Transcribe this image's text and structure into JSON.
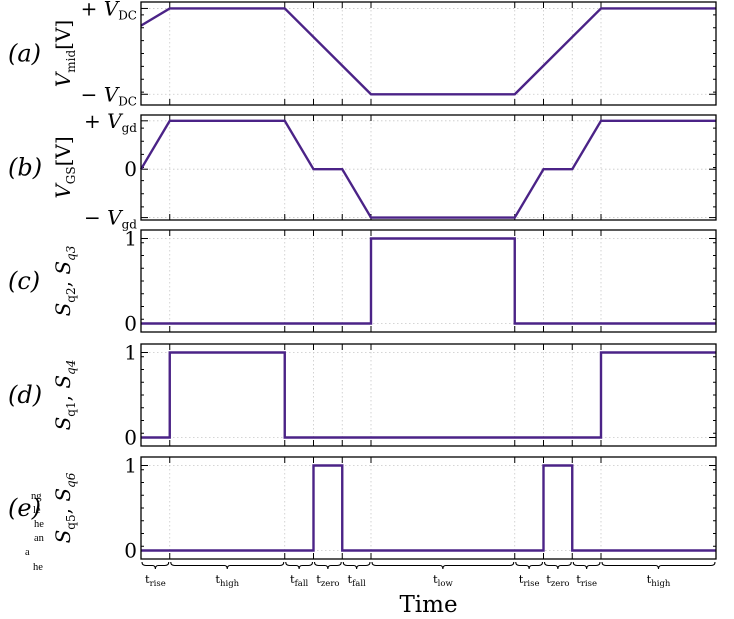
{
  "chart_data": {
    "type": "line",
    "x_label": "Time",
    "x_segments": [
      {
        "name": "t",
        "sub": "rise",
        "start": 0,
        "end": 1
      },
      {
        "name": "t",
        "sub": "high",
        "start": 1,
        "end": 5
      },
      {
        "name": "t",
        "sub": "fall",
        "start": 5,
        "end": 6
      },
      {
        "name": "t",
        "sub": "zero",
        "start": 6,
        "end": 7
      },
      {
        "name": "t",
        "sub": "fall",
        "start": 7,
        "end": 8
      },
      {
        "name": "t",
        "sub": "low",
        "start": 8,
        "end": 13
      },
      {
        "name": "t",
        "sub": "rise",
        "start": 13,
        "end": 14
      },
      {
        "name": "t",
        "sub": "zero",
        "start": 14,
        "end": 15
      },
      {
        "name": "t",
        "sub": "rise",
        "start": 15,
        "end": 16
      },
      {
        "name": "t",
        "sub": "high",
        "start": 16,
        "end": 20
      }
    ],
    "xlim": [
      0,
      20
    ],
    "panels": [
      {
        "id": "a",
        "tag": "(a)",
        "ylabel": {
          "var": "V",
          "sub": "mid",
          "unit": "[V]"
        },
        "yticks": [
          {
            "value": 1,
            "prefix": "+",
            "var": "V",
            "sub": "DC"
          },
          {
            "value": -1,
            "prefix": "−",
            "var": "V",
            "sub": "DC"
          }
        ],
        "ylim": [
          -1.25,
          1.15
        ],
        "x": [
          0,
          1,
          5,
          8,
          13,
          16,
          20
        ],
        "y": [
          0.6,
          1,
          1,
          -1,
          -1,
          1,
          1
        ]
      },
      {
        "id": "b",
        "tag": "(b)",
        "ylabel": {
          "var": "V",
          "sub": "GS",
          "unit": "[V]"
        },
        "yticks": [
          {
            "value": 1,
            "prefix": "+",
            "var": "V",
            "sub": "gd"
          },
          {
            "value": 0,
            "prefix": "",
            "var": "0",
            "sub": ""
          },
          {
            "value": -1,
            "prefix": "−",
            "var": "V",
            "sub": "gd"
          }
        ],
        "ylim": [
          -1.05,
          1.12
        ],
        "x": [
          0,
          1,
          5,
          6,
          7,
          8,
          13,
          14,
          15,
          16,
          20
        ],
        "y": [
          0,
          1,
          1,
          0,
          0,
          -1,
          -1,
          0,
          0,
          1,
          1
        ]
      },
      {
        "id": "c",
        "tag": "(c)",
        "ylabel": {
          "var": "S",
          "sub": "q2",
          "sep": ", ",
          "var2": "S",
          "sub2": "q3"
        },
        "yticks": [
          {
            "value": 1,
            "prefix": "",
            "var": "1",
            "sub": ""
          },
          {
            "value": 0,
            "prefix": "",
            "var": "0",
            "sub": ""
          }
        ],
        "ylim": [
          -0.1,
          1.1
        ],
        "x": [
          0,
          8,
          8,
          13,
          13,
          20
        ],
        "y": [
          0,
          0,
          1,
          1,
          0,
          0
        ]
      },
      {
        "id": "d",
        "tag": "(d)",
        "ylabel": {
          "var": "S",
          "sub": "q1",
          "sep": ", ",
          "var2": "S",
          "sub2": "q4"
        },
        "yticks": [
          {
            "value": 1,
            "prefix": "",
            "var": "1",
            "sub": ""
          },
          {
            "value": 0,
            "prefix": "",
            "var": "0",
            "sub": ""
          }
        ],
        "ylim": [
          -0.1,
          1.1
        ],
        "x": [
          0,
          1,
          1,
          5,
          5,
          16,
          16,
          20
        ],
        "y": [
          0,
          0,
          1,
          1,
          0,
          0,
          1,
          1
        ]
      },
      {
        "id": "e",
        "tag": "(e)",
        "ylabel": {
          "var": "S",
          "sub": "q5",
          "sep": ", ",
          "var2": "S",
          "sub2": "q6"
        },
        "yticks": [
          {
            "value": 1,
            "prefix": "",
            "var": "1",
            "sub": ""
          },
          {
            "value": 0,
            "prefix": "",
            "var": "0",
            "sub": ""
          }
        ],
        "ylim": [
          -0.1,
          1.1
        ],
        "x": [
          0,
          6,
          6,
          7,
          7,
          14,
          14,
          15,
          15,
          20
        ],
        "y": [
          0,
          0,
          1,
          1,
          0,
          0,
          1,
          1,
          0,
          0
        ]
      }
    ],
    "grid": true,
    "line_color": "#4b2387"
  },
  "clipped_side_text": [
    "ng",
    "le",
    "he",
    "an",
    "a",
    "he"
  ]
}
